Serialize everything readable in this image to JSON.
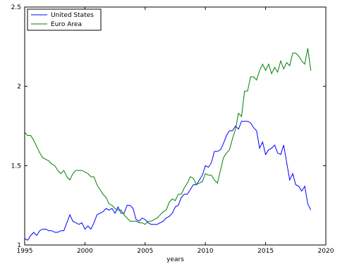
{
  "chart_data": {
    "type": "line",
    "title": "",
    "xlabel": "years",
    "ylabel": "",
    "xlim": [
      1995,
      2020
    ],
    "ylim": [
      1,
      2.5
    ],
    "x_ticks": [
      1995,
      2000,
      2005,
      2010,
      2015,
      2020
    ],
    "x_tick_labels": [
      "1995",
      "2000",
      "2005",
      "2010",
      "2015",
      "2020"
    ],
    "y_ticks": [
      1,
      1.5,
      2,
      2.5
    ],
    "y_tick_labels": [
      "1",
      "1.5",
      "2",
      "2.5"
    ],
    "grid": false,
    "legend_position": "top-left",
    "series": [
      {
        "name": "United States",
        "color": "#0000ff",
        "x": [
          1995.0,
          1995.25,
          1995.5,
          1995.75,
          1996.0,
          1996.25,
          1996.5,
          1996.75,
          1997.0,
          1997.25,
          1997.5,
          1997.75,
          1998.0,
          1998.25,
          1998.5,
          1998.75,
          1999.0,
          1999.25,
          1999.5,
          1999.75,
          2000.0,
          2000.25,
          2000.5,
          2000.75,
          2001.0,
          2001.25,
          2001.5,
          2001.75,
          2002.0,
          2002.25,
          2002.5,
          2002.75,
          2003.0,
          2003.25,
          2003.5,
          2003.75,
          2004.0,
          2004.25,
          2004.5,
          2004.75,
          2005.0,
          2005.25,
          2005.5,
          2005.75,
          2006.0,
          2006.25,
          2006.5,
          2006.75,
          2007.0,
          2007.25,
          2007.5,
          2007.75,
          2008.0,
          2008.25,
          2008.5,
          2008.75,
          2009.0,
          2009.25,
          2009.5,
          2009.75,
          2010.0,
          2010.25,
          2010.5,
          2010.75,
          2011.0,
          2011.25,
          2011.5,
          2011.75,
          2012.0,
          2012.25,
          2012.5,
          2012.75,
          2013.0,
          2013.25,
          2013.5,
          2013.75,
          2014.0,
          2014.25,
          2014.5,
          2014.75,
          2015.0,
          2015.25,
          2015.5,
          2015.75,
          2016.0,
          2016.25,
          2016.5,
          2016.75,
          2017.0,
          2017.25,
          2017.5,
          2017.75,
          2018.0,
          2018.25,
          2018.5,
          2018.75
        ],
        "values": [
          1.04,
          1.03,
          1.06,
          1.08,
          1.06,
          1.09,
          1.1,
          1.1,
          1.09,
          1.09,
          1.08,
          1.08,
          1.09,
          1.09,
          1.14,
          1.19,
          1.15,
          1.14,
          1.13,
          1.14,
          1.1,
          1.12,
          1.1,
          1.14,
          1.19,
          1.2,
          1.21,
          1.23,
          1.22,
          1.23,
          1.2,
          1.24,
          1.2,
          1.2,
          1.25,
          1.25,
          1.23,
          1.16,
          1.15,
          1.17,
          1.16,
          1.14,
          1.13,
          1.13,
          1.13,
          1.14,
          1.15,
          1.17,
          1.18,
          1.2,
          1.24,
          1.25,
          1.3,
          1.32,
          1.32,
          1.35,
          1.38,
          1.38,
          1.41,
          1.44,
          1.5,
          1.49,
          1.52,
          1.59,
          1.59,
          1.6,
          1.64,
          1.69,
          1.72,
          1.72,
          1.75,
          1.73,
          1.78,
          1.78,
          1.78,
          1.77,
          1.74,
          1.72,
          1.61,
          1.65,
          1.57,
          1.6,
          1.61,
          1.63,
          1.58,
          1.57,
          1.63,
          1.52,
          1.41,
          1.45,
          1.38,
          1.37,
          1.34,
          1.37,
          1.26,
          1.22
        ]
      },
      {
        "name": "Euro Area",
        "color": "#008000",
        "x": [
          1995.0,
          1995.25,
          1995.5,
          1995.75,
          1996.0,
          1996.25,
          1996.5,
          1996.75,
          1997.0,
          1997.25,
          1997.5,
          1997.75,
          1998.0,
          1998.25,
          1998.5,
          1998.75,
          1999.0,
          1999.25,
          1999.5,
          1999.75,
          2000.0,
          2000.25,
          2000.5,
          2000.75,
          2001.0,
          2001.25,
          2001.5,
          2001.75,
          2002.0,
          2002.25,
          2002.5,
          2002.75,
          2003.0,
          2003.25,
          2003.5,
          2003.75,
          2004.0,
          2004.25,
          2004.5,
          2004.75,
          2005.0,
          2005.25,
          2005.5,
          2005.75,
          2006.0,
          2006.25,
          2006.5,
          2006.75,
          2007.0,
          2007.25,
          2007.5,
          2007.75,
          2008.0,
          2008.25,
          2008.5,
          2008.75,
          2009.0,
          2009.25,
          2009.5,
          2009.75,
          2010.0,
          2010.25,
          2010.5,
          2010.75,
          2011.0,
          2011.25,
          2011.5,
          2011.75,
          2012.0,
          2012.25,
          2012.5,
          2012.75,
          2013.0,
          2013.25,
          2013.5,
          2013.75,
          2014.0,
          2014.25,
          2014.5,
          2014.75,
          2015.0,
          2015.25,
          2015.5,
          2015.75,
          2016.0,
          2016.25,
          2016.5,
          2016.75,
          2017.0,
          2017.25,
          2017.5,
          2017.75,
          2018.0,
          2018.25,
          2018.5,
          2018.75
        ],
        "values": [
          1.71,
          1.69,
          1.69,
          1.66,
          1.62,
          1.58,
          1.55,
          1.54,
          1.53,
          1.51,
          1.5,
          1.47,
          1.45,
          1.47,
          1.43,
          1.41,
          1.45,
          1.47,
          1.47,
          1.47,
          1.46,
          1.45,
          1.43,
          1.43,
          1.38,
          1.35,
          1.32,
          1.3,
          1.26,
          1.25,
          1.23,
          1.22,
          1.22,
          1.19,
          1.17,
          1.15,
          1.15,
          1.15,
          1.14,
          1.14,
          1.13,
          1.15,
          1.15,
          1.16,
          1.17,
          1.19,
          1.21,
          1.22,
          1.27,
          1.29,
          1.28,
          1.32,
          1.32,
          1.36,
          1.39,
          1.43,
          1.42,
          1.38,
          1.39,
          1.4,
          1.45,
          1.44,
          1.44,
          1.41,
          1.39,
          1.47,
          1.55,
          1.58,
          1.6,
          1.67,
          1.73,
          1.83,
          1.81,
          1.97,
          1.97,
          2.06,
          2.06,
          2.04,
          2.1,
          2.14,
          2.1,
          2.14,
          2.08,
          2.12,
          2.09,
          2.16,
          2.11,
          2.15,
          2.13,
          2.21,
          2.21,
          2.19,
          2.16,
          2.14,
          2.24,
          2.1
        ]
      }
    ]
  }
}
